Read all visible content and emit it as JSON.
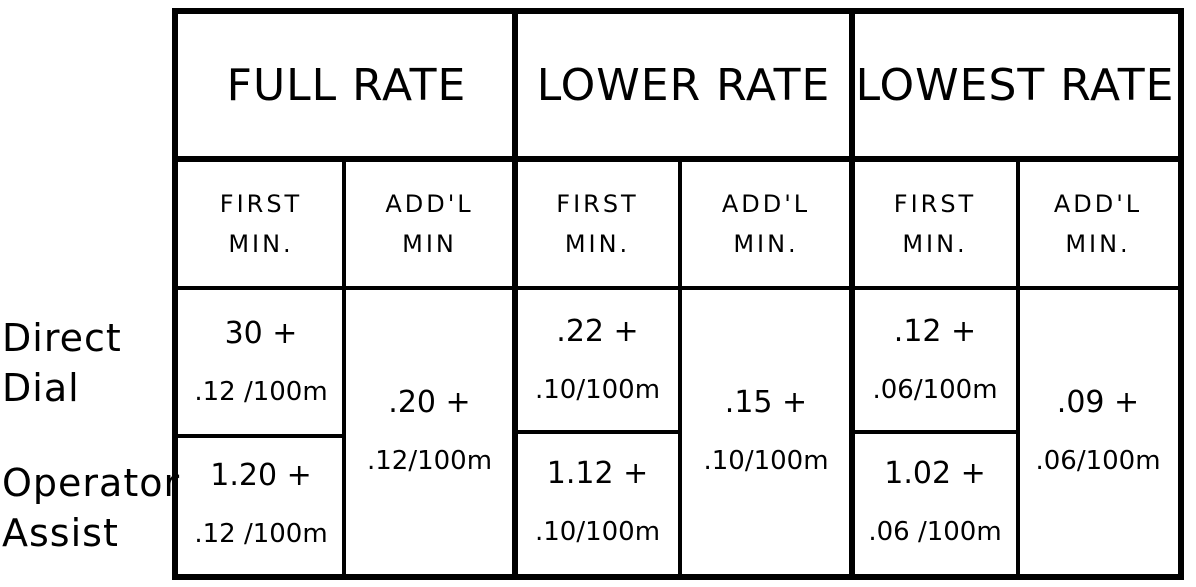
{
  "row_labels": [
    {
      "line1": "Direct",
      "line2": "Dial"
    },
    {
      "line1": "Operator",
      "line2": "Assist"
    }
  ],
  "groups": [
    {
      "title": "FULL RATE",
      "first_min_label": {
        "line1": "FIRST",
        "line2": "MIN."
      },
      "addl_min_label": {
        "line1": "ADD'L",
        "line2": "MIN"
      },
      "direct_first": {
        "line1": "30 +",
        "line2": ".12 /100m"
      },
      "operator_first": {
        "line1": "1.20 +",
        "line2": ".12 /100m"
      },
      "addl": {
        "line1": ".20 +",
        "line2": ".12/100m"
      }
    },
    {
      "title": "LOWER RATE",
      "first_min_label": {
        "line1": "FIRST",
        "line2": "MIN."
      },
      "addl_min_label": {
        "line1": "ADD'L",
        "line2": "MIN."
      },
      "direct_first": {
        "line1": ".22 +",
        "line2": ".10/100m"
      },
      "operator_first": {
        "line1": "1.12 +",
        "line2": ".10/100m"
      },
      "addl": {
        "line1": ".15 +",
        "line2": ".10/100m"
      }
    },
    {
      "title": "LOWEST RATE",
      "first_min_label": {
        "line1": "FIRST",
        "line2": "MIN."
      },
      "addl_min_label": {
        "line1": "ADD'L",
        "line2": "MIN."
      },
      "direct_first": {
        "line1": ".12 +",
        "line2": ".06/100m"
      },
      "operator_first": {
        "line1": "1.02 +",
        "line2": ".06 /100m"
      },
      "addl": {
        "line1": ".09 +",
        "line2": ".06/100m"
      }
    }
  ]
}
